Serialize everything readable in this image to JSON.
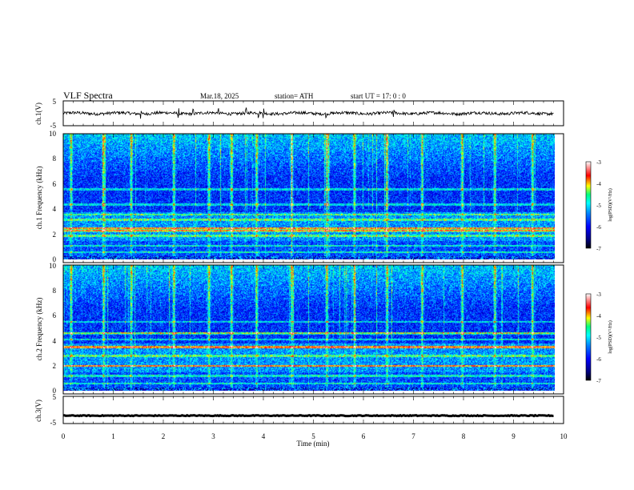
{
  "header": {
    "title": "VLF Spectra",
    "date": "Mar.18, 2025",
    "station": "station= ATH",
    "start": "start UT = 17: 0 : 0"
  },
  "colors": {
    "colormap": [
      "#000000",
      "#000080",
      "#0000ff",
      "#0080ff",
      "#00ffff",
      "#00ff80",
      "#ffff00",
      "#ff0000",
      "#ffffff"
    ],
    "trace": "#000000"
  },
  "chart_data": [
    {
      "type": "line",
      "name": "ch1-waveform",
      "ylabel": "ch.1(V)",
      "yticks": [
        "5",
        "-5"
      ],
      "ylim": [
        -5,
        5
      ],
      "xlim": [
        0,
        10
      ],
      "baseline": 0,
      "noise_amplitude": 0.6,
      "spikes": [
        1.55,
        2.3,
        2.6,
        3.1,
        3.65,
        3.9,
        4.0,
        5.25,
        6.6
      ]
    },
    {
      "type": "heatmap",
      "name": "ch1-spectrogram",
      "ylabel": "ch.1 Frequency (kHz)",
      "xlabel": "",
      "xlim": [
        0,
        10
      ],
      "ylim": [
        0,
        10
      ],
      "yticks": [
        "0",
        "2",
        "4",
        "6",
        "8",
        "10"
      ],
      "colorbar": {
        "label": "log(PSD)(V²/Hz)",
        "ticks": [
          "-3",
          "-4",
          "-5",
          "-6",
          "-7"
        ],
        "range": [
          -7,
          -3
        ]
      },
      "hum_bands_khz": [
        0.6,
        1.1,
        1.9,
        2.3,
        2.5,
        3.2,
        3.6,
        4.4,
        5.6
      ],
      "bright_bands_khz": [
        2.3,
        2.5
      ],
      "sferic_times_min": [
        0.15,
        0.8,
        1.35,
        2.2,
        2.9,
        3.35,
        3.85,
        4.55,
        5.25,
        5.8,
        6.45,
        7.15,
        7.95,
        8.6,
        9.35
      ]
    },
    {
      "type": "heatmap",
      "name": "ch2-spectrogram",
      "ylabel": "ch.2 Frequency (kHz)",
      "xlabel": "",
      "xlim": [
        0,
        10
      ],
      "ylim": [
        0,
        10
      ],
      "yticks": [
        "0",
        "2",
        "4",
        "6",
        "8",
        "10"
      ],
      "colorbar": {
        "label": "log(PSD)(V²/Hz)",
        "ticks": [
          "-3",
          "-4",
          "-5",
          "-6",
          "-7"
        ],
        "range": [
          -7,
          -3
        ]
      },
      "hum_bands_khz": [
        0.6,
        1.2,
        2.0,
        2.8,
        3.5,
        4.1,
        4.6,
        5.5
      ],
      "bright_bands_khz": [
        2.0,
        3.5,
        4.6
      ],
      "sferic_times_min": [
        0.15,
        0.8,
        1.35,
        2.2,
        2.9,
        3.35,
        3.85,
        4.55,
        5.25,
        5.8,
        6.45,
        7.15,
        7.95,
        8.6,
        9.35
      ]
    },
    {
      "type": "line",
      "name": "ch3-waveform",
      "ylabel": "ch.3(V)",
      "yticks": [
        "5",
        "-5"
      ],
      "ylim": [
        -5,
        5
      ],
      "xlim": [
        0,
        10
      ],
      "xlabel": "Time (min)",
      "xticks": [
        "0",
        "1",
        "2",
        "3",
        "4",
        "5",
        "6",
        "7",
        "8",
        "9",
        "10"
      ],
      "baseline": -2.1,
      "noise_amplitude": 0.15
    }
  ]
}
